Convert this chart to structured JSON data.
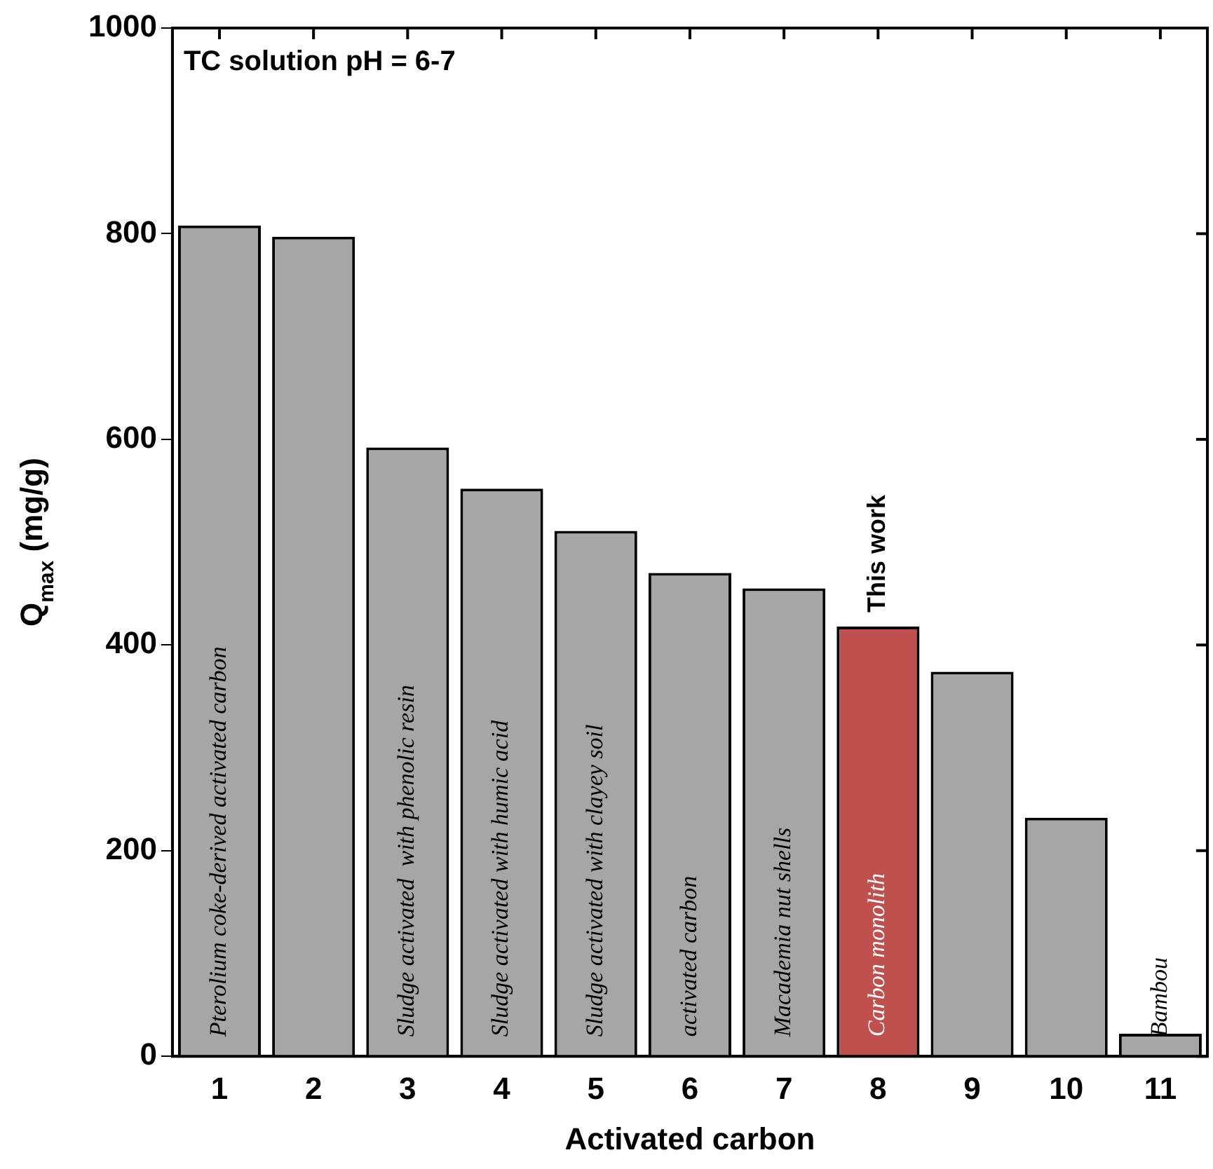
{
  "chart_data": {
    "type": "bar",
    "xlabel": "Activated carbon",
    "ylabel": "Q$_{max}$ (mg/g)",
    "categories": [
      "1",
      "2",
      "3",
      "4",
      "5",
      "6",
      "7",
      "8",
      "9",
      "10",
      "11"
    ],
    "values": [
      808,
      797,
      592,
      552,
      511,
      470,
      455,
      418,
      374,
      232,
      22
    ],
    "value_labels": [
      "Pterolium coke-derived activated carbon",
      null,
      "Sludge activated  with phenolic resin",
      "Sludge activated with humic acid",
      "Sludge activated with clayey soil",
      "activated carbon",
      "Macademia nut shells",
      "Carbon monolith",
      null,
      null,
      "Bambou"
    ],
    "colors": [
      "#a6a6a6",
      "#a6a6a6",
      "#a6a6a6",
      "#a6a6a6",
      "#a6a6a6",
      "#a6a6a6",
      "#a6a6a6",
      "#c0504d",
      "#a6a6a6",
      "#a6a6a6",
      "#a6a6a6"
    ],
    "ylim": [
      0,
      1000
    ],
    "yticks": [
      0,
      200,
      400,
      600,
      800,
      1000
    ],
    "grid": false,
    "legend": false,
    "annotations": [
      "TC solution pH = 6-7",
      {
        "text": "This work",
        "x": "8",
        "y": 418
      }
    ]
  }
}
